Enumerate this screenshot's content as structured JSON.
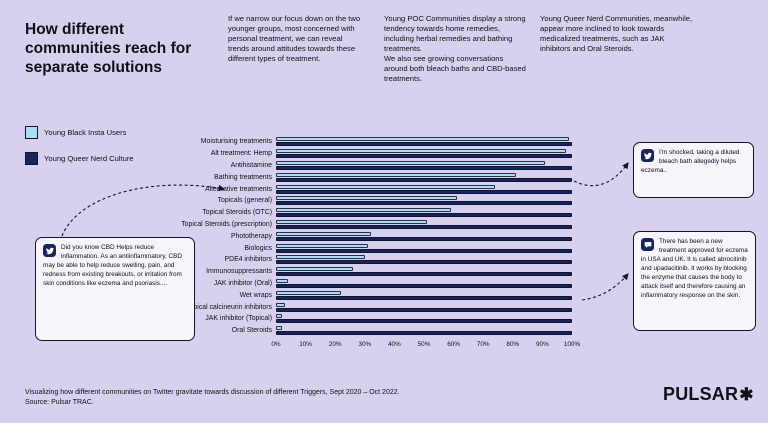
{
  "page": {
    "title": "How different communities reach for separate solutions",
    "intro": [
      "If we narrow our focus down on the two younger groups, most concerned with personal treatment, we can reveal trends around attitudes towards these different types of treatment.",
      "Young POC Communities display a strong tendency towards home remedies, including herbal remedies and bathing treatments.\nWe also see growing conversations around both bleach baths and CBD-based treatments.",
      "Young Queer Nerd Communities, meanwhile, appear more inclined to look towards medicalized treatments, such as JAK inhibitors and Oral Steroids."
    ],
    "footer": {
      "line1": "Visualizing how different communities on Twitter gravitate towards discussion of different Triggers, Sept 2020 – Oct 2022.",
      "line2": "Source: Pulsar TRAC."
    },
    "logo": {
      "text": "PULSAR",
      "mark": "✱"
    }
  },
  "legend": {
    "items": [
      {
        "label": "Young Black Insta Users",
        "color": "#a8dff2"
      },
      {
        "label": "Young Queer Nerd Culture",
        "color": "#16265c"
      }
    ]
  },
  "chart_data": {
    "type": "bar",
    "orientation": "horizontal",
    "title": "",
    "xlabel": "",
    "ylabel": "",
    "xlim": [
      0,
      100
    ],
    "grid": false,
    "legend_position": "left",
    "categories": [
      "Moisturising treatments",
      "Alt treatment: Hemp",
      "Antihistamine",
      "Bathing treatments",
      "Alternative treatments",
      "Topicals (general)",
      "Topical Steroids (OTC)",
      "Topical Steroids (prescription)",
      "Phototherapy",
      "Biologics",
      "PDE4 inhibitors",
      "Immunosuppressants",
      "JAK inhibitor (Oral)",
      "Wet wraps",
      "Topical calcineurin inhibitors",
      "JAK inhibitor (Topical)",
      "Oral Steroids"
    ],
    "series": [
      {
        "name": "Young Black Insta Users",
        "color": "#a8dff2",
        "values": [
          99,
          98,
          91,
          81,
          74,
          61,
          59,
          51,
          32,
          31,
          30,
          26,
          4,
          22,
          3,
          2,
          2
        ]
      },
      {
        "name": "Young Queer Nerd Culture",
        "color": "#16265c",
        "values": [
          100,
          100,
          100,
          100,
          100,
          100,
          100,
          100,
          100,
          100,
          100,
          100,
          100,
          100,
          100,
          100,
          100
        ]
      }
    ],
    "x_ticks": [
      "0%",
      "10%",
      "20%",
      "30%",
      "40%",
      "50%",
      "60%",
      "70%",
      "80%",
      "90%",
      "100%"
    ]
  },
  "callouts": {
    "left": {
      "icon": "twitter",
      "text": "Did you know CBD Helps reduce inflammation. As an antiinflammatory, CBD may be able to help reduce swelling, pain, and redness from existing breakouts, or irritation from skin conditions like eczema and psoriasis...."
    },
    "top_right": {
      "icon": "twitter",
      "text": "I'm shocked, taking a diluted bleach bath allegedly helps eczema.."
    },
    "bottom_right": {
      "icon": "chat",
      "text": "There has been a new treatment approved for eczema in USA and UK. It is called abrocitinib and upadacitinib. It works by blocking the enzyme that causes the body to attack itself and therefore causing an inflammatory response on the skin."
    }
  }
}
